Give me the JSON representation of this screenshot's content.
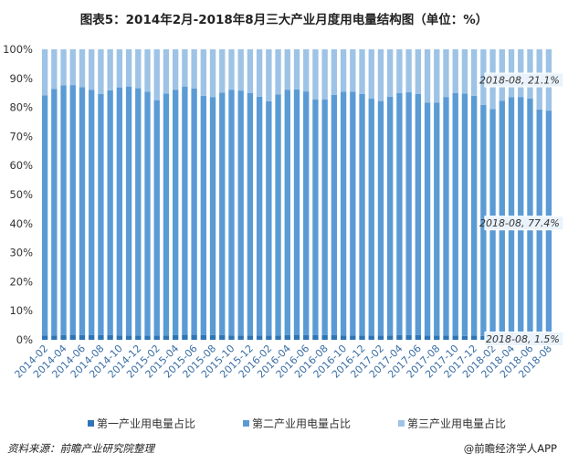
{
  "chart_data": {
    "type": "bar",
    "stacked": true,
    "title": "图表5：2014年2月-2018年8月三大产业月度用电量结构图（单位：%）",
    "ylim": [
      0,
      100
    ],
    "yticks": [
      "0%",
      "10%",
      "20%",
      "30%",
      "40%",
      "50%",
      "60%",
      "70%",
      "80%",
      "90%",
      "100%"
    ],
    "categories": [
      "2014-02",
      "2014-03",
      "2014-04",
      "2014-05",
      "2014-06",
      "2014-07",
      "2014-08",
      "2014-09",
      "2014-10",
      "2014-11",
      "2014-12",
      "2015-01",
      "2015-02",
      "2015-03",
      "2015-04",
      "2015-05",
      "2015-06",
      "2015-07",
      "2015-08",
      "2015-09",
      "2015-10",
      "2015-11",
      "2015-12",
      "2016-01",
      "2016-02",
      "2016-03",
      "2016-04",
      "2016-05",
      "2016-06",
      "2016-07",
      "2016-08",
      "2016-09",
      "2016-10",
      "2016-11",
      "2016-12",
      "2017-01",
      "2017-02",
      "2017-03",
      "2017-04",
      "2017-05",
      "2017-06",
      "2017-07",
      "2017-08",
      "2017-09",
      "2017-10",
      "2017-11",
      "2017-12",
      "2018-01",
      "2018-02",
      "2018-03",
      "2018-04",
      "2018-05",
      "2018-06",
      "2018-07",
      "2018-08"
    ],
    "xtick_labels": [
      "2014-02",
      "2014-04",
      "2014-06",
      "2014-08",
      "2014-10",
      "2014-12",
      "2015-02",
      "2015-04",
      "2015-06",
      "2015-08",
      "2015-10",
      "2015-12",
      "2016-02",
      "2016-04",
      "2016-06",
      "2016-08",
      "2016-10",
      "2016-12",
      "2017-02",
      "2017-04",
      "2017-06",
      "2017-08",
      "2017-10",
      "2017-12",
      "2018-02",
      "2018-04",
      "2018-06",
      "2018-08"
    ],
    "series": [
      {
        "name": "第一产业用电量占比",
        "color": "#2e75b6",
        "values": [
          1.5,
          1.4,
          1.6,
          1.7,
          1.6,
          1.6,
          1.6,
          1.6,
          1.5,
          1.4,
          1.4,
          1.4,
          1.5,
          1.5,
          1.6,
          1.7,
          1.7,
          1.6,
          1.6,
          1.6,
          1.5,
          1.4,
          1.4,
          1.4,
          1.5,
          1.5,
          1.6,
          1.7,
          1.6,
          1.6,
          1.6,
          1.6,
          1.5,
          1.4,
          1.4,
          1.4,
          1.5,
          1.5,
          1.6,
          1.6,
          1.6,
          1.5,
          1.5,
          1.5,
          1.4,
          1.3,
          1.4,
          1.3,
          1.4,
          1.4,
          1.5,
          1.5,
          1.5,
          1.5,
          1.5
        ]
      },
      {
        "name": "第二产业用电量占比",
        "color": "#5b9bd5",
        "values": [
          82.7,
          85.0,
          86.0,
          86.0,
          85.4,
          84.5,
          83.0,
          84.3,
          85.4,
          85.8,
          85.2,
          84.0,
          81.0,
          83.3,
          84.5,
          85.4,
          84.8,
          82.4,
          82.0,
          83.5,
          84.6,
          84.4,
          83.6,
          82.3,
          80.6,
          83.0,
          84.5,
          84.5,
          83.9,
          81.2,
          81.1,
          82.7,
          83.9,
          84.0,
          83.2,
          81.6,
          80.7,
          82.2,
          83.4,
          83.6,
          83.0,
          80.2,
          80.2,
          82.1,
          83.5,
          83.5,
          82.6,
          79.6,
          78.0,
          80.9,
          82.0,
          82.1,
          81.6,
          77.8,
          77.4
        ]
      },
      {
        "name": "第三产业用电量占比",
        "color": "#9dc3e6",
        "values": [
          15.8,
          13.6,
          12.4,
          12.3,
          13.0,
          13.9,
          15.4,
          14.1,
          13.1,
          12.8,
          13.4,
          14.6,
          17.5,
          15.2,
          13.9,
          12.9,
          13.5,
          16.0,
          16.4,
          14.9,
          13.9,
          14.2,
          15.0,
          16.3,
          17.9,
          15.5,
          13.9,
          13.8,
          14.5,
          17.2,
          17.3,
          15.7,
          14.6,
          14.6,
          15.4,
          17.0,
          17.8,
          16.3,
          15.0,
          14.8,
          15.4,
          18.3,
          18.3,
          16.4,
          15.1,
          15.2,
          16.0,
          19.1,
          20.6,
          17.7,
          16.5,
          16.4,
          16.9,
          20.7,
          21.1
        ]
      }
    ],
    "annotations": [
      "2018-08, 21.1%",
      "2018-08, 77.4%",
      "2018-08, 1.5%"
    ],
    "legend_position": "bottom"
  },
  "footer": {
    "source": "资料来源：前瞻产业研究院整理",
    "brand": "@前瞻经济学人APP"
  }
}
